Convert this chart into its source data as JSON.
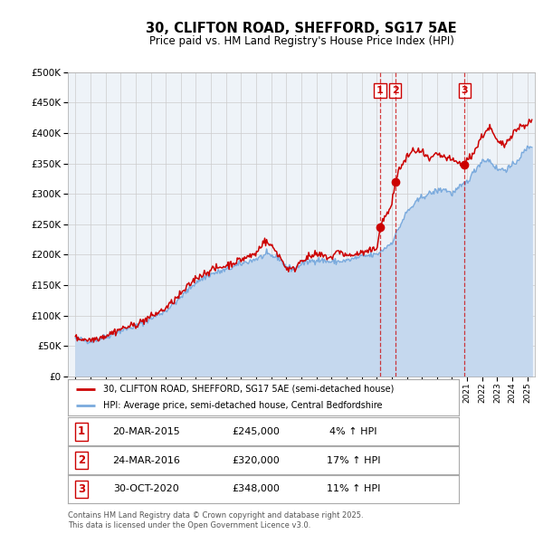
{
  "title": "30, CLIFTON ROAD, SHEFFORD, SG17 5AE",
  "subtitle": "Price paid vs. HM Land Registry's House Price Index (HPI)",
  "legend_line1": "30, CLIFTON ROAD, SHEFFORD, SG17 5AE (semi-detached house)",
  "legend_line2": "HPI: Average price, semi-detached house, Central Bedfordshire",
  "transactions": [
    {
      "num": 1,
      "date": "20-MAR-2015",
      "price": 245000,
      "pct": "4%",
      "direction": "↑"
    },
    {
      "num": 2,
      "date": "24-MAR-2016",
      "price": 320000,
      "pct": "17%",
      "direction": "↑"
    },
    {
      "num": 3,
      "date": "30-OCT-2020",
      "price": 348000,
      "pct": "11%",
      "direction": "↑"
    }
  ],
  "transaction_years": [
    2015.22,
    2016.23,
    2020.83
  ],
  "transaction_prices": [
    245000,
    320000,
    348000
  ],
  "footer": "Contains HM Land Registry data © Crown copyright and database right 2025.\nThis data is licensed under the Open Government Licence v3.0.",
  "ylim": [
    0,
    500000
  ],
  "yticks": [
    0,
    50000,
    100000,
    150000,
    200000,
    250000,
    300000,
    350000,
    400000,
    450000,
    500000
  ],
  "xlim_start": 1994.5,
  "xlim_end": 2025.5,
  "red_color": "#cc0000",
  "blue_color": "#7aaadd",
  "blue_fill_color": "#c5d8ee",
  "background_color": "#ffffff",
  "grid_color": "#cccccc",
  "plot_bg_color": "#eef3f8"
}
